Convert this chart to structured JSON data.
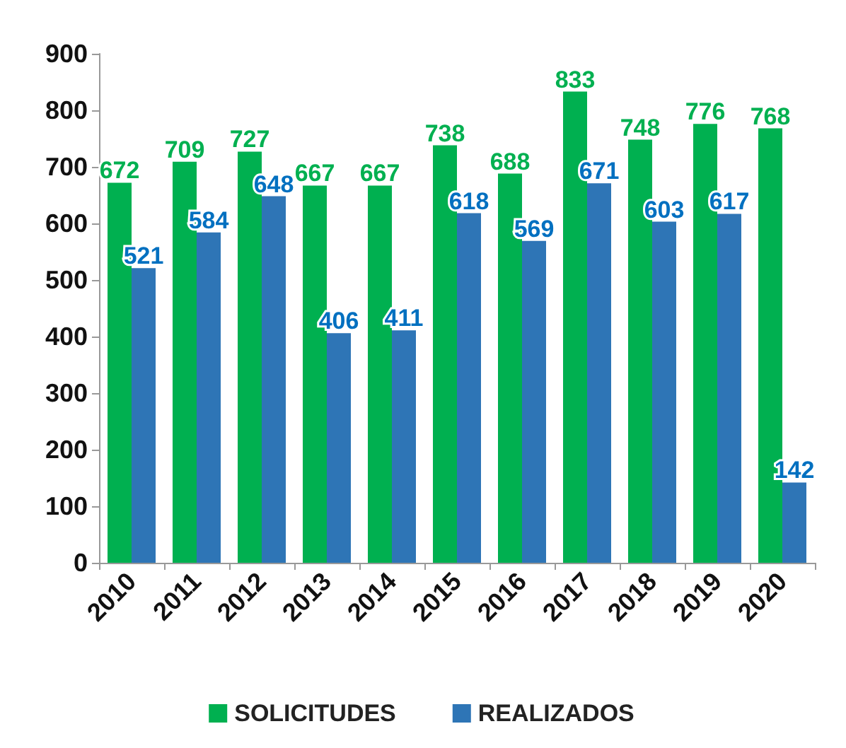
{
  "chart_data": {
    "type": "bar",
    "categories": [
      "2010",
      "2011",
      "2012",
      "2013",
      "2014",
      "2015",
      "2016",
      "2017",
      "2018",
      "2019",
      "2020"
    ],
    "series": [
      {
        "name": "SOLICITUDES",
        "color": "#00b050",
        "values": [
          672,
          709,
          727,
          667,
          667,
          738,
          688,
          833,
          748,
          776,
          768
        ]
      },
      {
        "name": "REALIZADOS",
        "color": "#2e75b6",
        "values": [
          521,
          584,
          648,
          406,
          411,
          618,
          569,
          671,
          603,
          617,
          142
        ]
      }
    ],
    "ylim": [
      0,
      900
    ],
    "yticks": [
      0,
      100,
      200,
      300,
      400,
      500,
      600,
      700,
      800,
      900
    ],
    "grid": false,
    "legend": "bottom",
    "data_labels": true
  }
}
